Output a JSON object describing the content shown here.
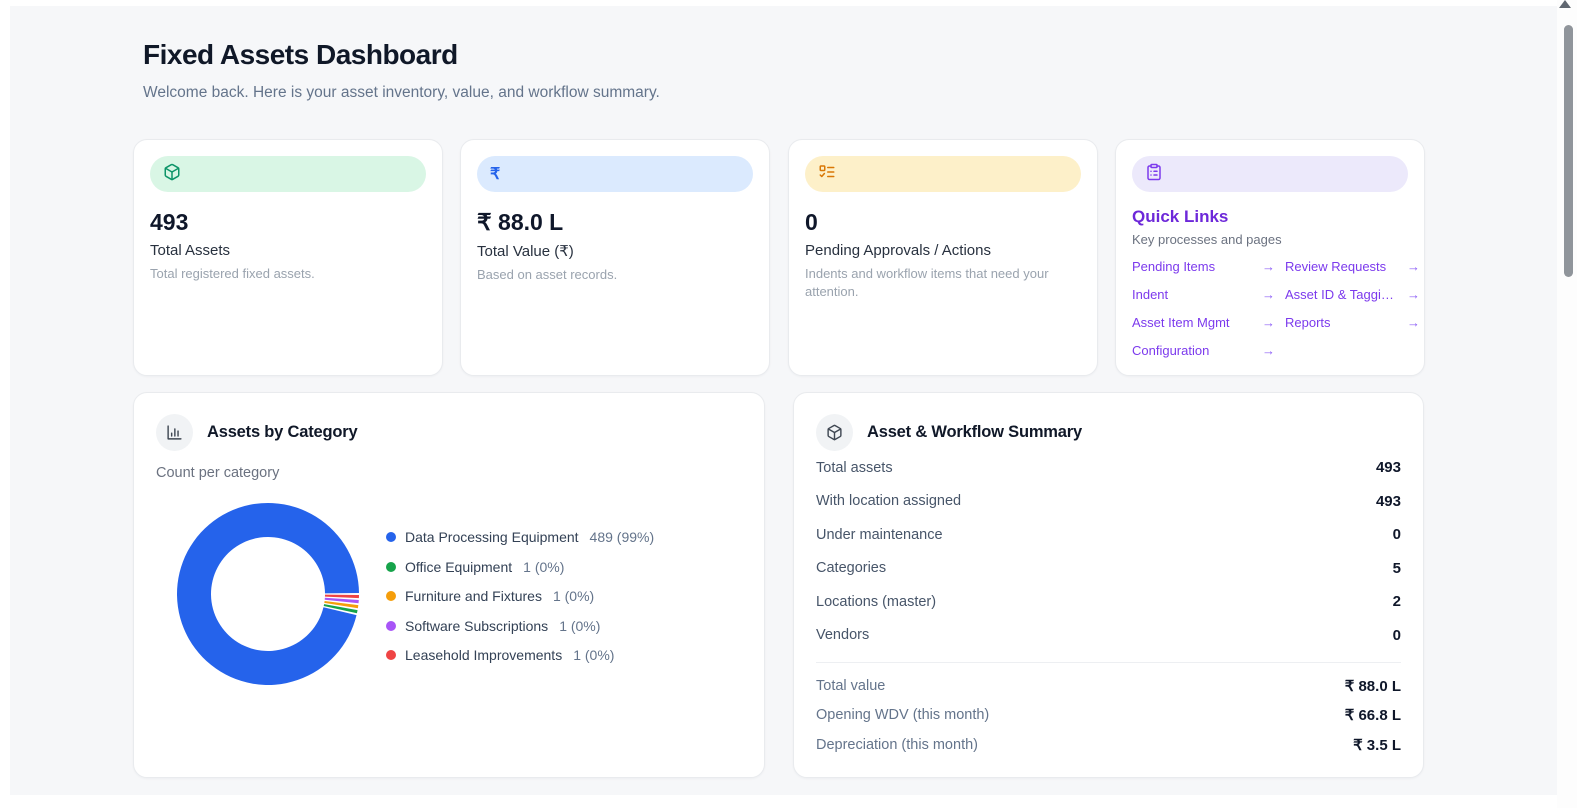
{
  "page": {
    "title": "Fixed Assets Dashboard",
    "subtitle": "Welcome back. Here is your asset inventory, value, and workflow summary."
  },
  "theme": {
    "background": "#f6f7f9",
    "card_background": "#ffffff",
    "accent_green_bg": "#d9f6e5",
    "accent_green_icon": "#0d9468",
    "accent_blue_bg": "#dbeafe",
    "accent_blue_icon": "#2563eb",
    "accent_amber_bg": "#fdf0c9",
    "accent_amber_icon": "#d97706",
    "accent_violet_bg": "#ece9fb",
    "accent_violet_icon": "#7c3aed",
    "link_purple": "#7c3aed"
  },
  "stats": [
    {
      "icon": "package-icon",
      "value": "493",
      "label": "Total Assets",
      "description": "Total registered fixed assets."
    },
    {
      "icon": "rupee-icon",
      "value": "₹ 88.0 L",
      "label": "Total Value (₹)",
      "description": "Based on asset records."
    },
    {
      "icon": "list-todo-icon",
      "value": "0",
      "label": "Pending Approvals / Actions",
      "description": "Indents and workflow items that need your attention."
    }
  ],
  "quick_links": {
    "title": "Quick Links",
    "subtitle": "Key processes and pages",
    "arrow": "→",
    "links": [
      {
        "label": "Pending Items"
      },
      {
        "label": "Review Requests"
      },
      {
        "label": "Indent"
      },
      {
        "label": "Asset ID & Taggi…"
      },
      {
        "label": "Asset Item Mgmt"
      },
      {
        "label": "Reports"
      },
      {
        "label": "Configuration"
      }
    ]
  },
  "chart_card": {
    "title": "Assets by Category",
    "subtitle": "Count per category"
  },
  "chart_data": {
    "type": "pie",
    "donut": true,
    "title": "Assets by Category",
    "categories": [
      "Data Processing Equipment",
      "Office Equipment",
      "Furniture and Fixtures",
      "Software Subscriptions",
      "Leasehold Improvements"
    ],
    "values": [
      489,
      1,
      1,
      1,
      1
    ],
    "total": 493,
    "value_labels": [
      "489 (99%)",
      "1 (0%)",
      "1 (0%)",
      "1 (0%)",
      "1 (0%)"
    ],
    "colors": [
      "#2563eb",
      "#16a34a",
      "#f59e0b",
      "#a855f7",
      "#ef4444"
    ],
    "legend_position": "right",
    "start_angle_deg": 0,
    "direction": "counterclockwise"
  },
  "summary": {
    "title": "Asset & Workflow Summary",
    "rows": [
      {
        "label": "Total assets",
        "value": "493"
      },
      {
        "label": "With location assigned",
        "value": "493"
      },
      {
        "label": "Under maintenance",
        "value": "0"
      },
      {
        "label": "Categories",
        "value": "5"
      },
      {
        "label": "Locations (master)",
        "value": "2"
      },
      {
        "label": "Vendors",
        "value": "0"
      }
    ],
    "money_rows": [
      {
        "label": "Total value",
        "value": "₹ 88.0 L"
      },
      {
        "label": "Opening WDV (this month)",
        "value": "₹ 66.8 L"
      },
      {
        "label": "Depreciation (this month)",
        "value": "₹ 3.5 L"
      }
    ]
  }
}
